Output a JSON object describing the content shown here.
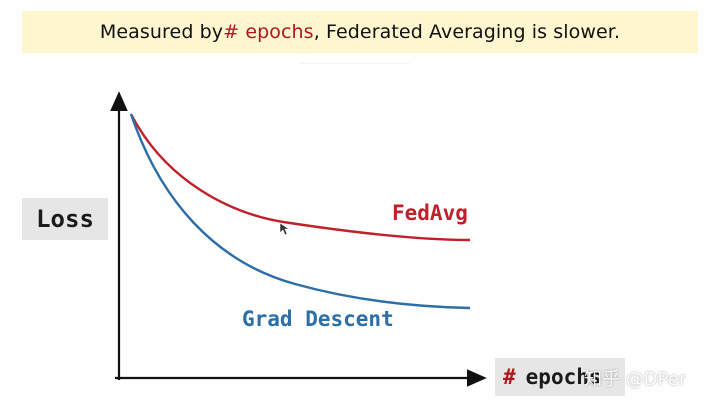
{
  "title": {
    "prefix": "Measured by ",
    "highlight": "# epochs",
    "suffix": ", Federated Averaging is slower."
  },
  "axes": {
    "y_label": "Loss",
    "x_label_hash": "#",
    "x_label_word": "epochs"
  },
  "colors": {
    "fedavg": "#c0202a",
    "grad_descent": "#2b6ea8",
    "highlight": "#b0171c",
    "banner": "#fdf6cf",
    "label_box": "#e6e6e6"
  },
  "series": {
    "fedavg_label": "FedAvg",
    "gd_label": "Grad Descent"
  },
  "watermark": "知乎 @DPer",
  "icons": [
    "mouse-cursor-icon"
  ]
}
